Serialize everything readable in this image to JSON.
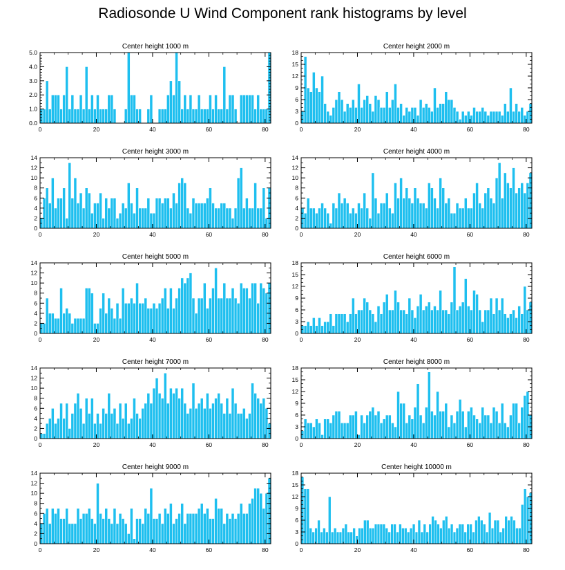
{
  "title": "Radiosonde U Wind Component rank histograms by level",
  "style": {
    "bar_color": "#1ebfef",
    "bar_stroke": "#ffffff",
    "axis_color": "#000000"
  },
  "chart_data": [
    {
      "type": "bar",
      "title": "Center height 1000 m",
      "xlim": [
        0,
        82
      ],
      "xticks": [
        0,
        20,
        40,
        60,
        80
      ],
      "ylim": [
        0,
        5
      ],
      "yticks": [
        0,
        1,
        2,
        3,
        4,
        5
      ],
      "ytick_labels": [
        "0.0",
        "1.0",
        "2.0",
        "3.0",
        "4.0",
        "5.0"
      ],
      "values": [
        1,
        1,
        3,
        1,
        2,
        2,
        2,
        1,
        2,
        4,
        1,
        2,
        1,
        1,
        2,
        1,
        4,
        1,
        2,
        1,
        2,
        1,
        1,
        1,
        2,
        2,
        1,
        0,
        0,
        0,
        1,
        5,
        2,
        2,
        1,
        1,
        0,
        0,
        1,
        2,
        0,
        0,
        1,
        1,
        1,
        2,
        3,
        2,
        5,
        3,
        1,
        2,
        1,
        2,
        1,
        1,
        2,
        1,
        1,
        1,
        2,
        1,
        2,
        1,
        1,
        4,
        1,
        2,
        2,
        1,
        0,
        2,
        2,
        2,
        2,
        2,
        1,
        2,
        1,
        1,
        1,
        5
      ]
    },
    {
      "type": "bar",
      "title": "Center height 2000 m",
      "xlim": [
        0,
        82
      ],
      "xticks": [
        0,
        20,
        40,
        60,
        80
      ],
      "ylim": [
        0,
        18
      ],
      "yticks": [
        0,
        3,
        6,
        9,
        12,
        15,
        18
      ],
      "ytick_labels": [
        "0",
        "3",
        "6",
        "9",
        "12",
        "15",
        "18"
      ],
      "values": [
        3,
        17,
        9,
        8,
        13,
        9,
        8,
        12,
        5,
        3,
        2,
        4,
        6,
        8,
        6,
        3,
        5,
        4,
        6,
        4,
        10,
        4,
        6,
        7,
        5,
        3,
        7,
        6,
        4,
        4,
        8,
        4,
        6,
        10,
        4,
        5,
        2,
        4,
        3,
        4,
        4,
        2,
        6,
        4,
        5,
        4,
        3,
        9,
        4,
        5,
        5,
        8,
        6,
        6,
        4,
        3,
        1,
        3,
        2,
        3,
        2,
        4,
        3,
        3,
        4,
        3,
        2,
        3,
        3,
        3,
        3,
        2,
        5,
        3,
        9,
        3,
        5,
        3,
        4,
        2,
        3,
        5
      ]
    },
    {
      "type": "bar",
      "title": "Center height 3000 m",
      "xlim": [
        0,
        82
      ],
      "xticks": [
        0,
        20,
        40,
        60,
        80
      ],
      "ylim": [
        0,
        14
      ],
      "yticks": [
        0,
        2,
        4,
        6,
        8,
        10,
        12,
        14
      ],
      "ytick_labels": [
        "0",
        "2",
        "4",
        "6",
        "8",
        "10",
        "12",
        "14"
      ],
      "values": [
        2,
        6,
        8,
        5,
        10,
        4,
        6,
        6,
        8,
        2,
        13,
        6,
        10,
        5,
        7,
        4,
        8,
        7,
        3,
        5,
        5,
        7,
        2,
        6,
        4,
        6,
        6,
        2,
        3,
        5,
        4,
        9,
        5,
        3,
        8,
        4,
        4,
        4,
        6,
        3,
        3,
        6,
        6,
        5,
        6,
        6,
        4,
        7,
        5,
        9,
        10,
        9,
        4,
        3,
        6,
        5,
        5,
        5,
        5,
        6,
        8,
        5,
        4,
        4,
        5,
        5,
        4,
        4,
        2,
        4,
        10,
        12,
        4,
        6,
        4,
        4,
        9,
        4,
        4,
        8,
        2,
        8
      ]
    },
    {
      "type": "bar",
      "title": "Center height 4000 m",
      "xlim": [
        0,
        82
      ],
      "xticks": [
        0,
        20,
        40,
        60,
        80
      ],
      "ylim": [
        0,
        14
      ],
      "yticks": [
        0,
        2,
        4,
        6,
        8,
        10,
        12,
        14
      ],
      "ytick_labels": [
        "0",
        "2",
        "4",
        "6",
        "8",
        "10",
        "12",
        "14"
      ],
      "values": [
        4,
        3,
        6,
        4,
        4,
        3,
        4,
        5,
        4,
        3,
        1,
        5,
        4,
        7,
        5,
        6,
        5,
        3,
        4,
        3,
        5,
        4,
        7,
        4,
        2,
        11,
        6,
        3,
        5,
        5,
        7,
        4,
        3,
        9,
        6,
        10,
        6,
        8,
        6,
        5,
        8,
        6,
        5,
        5,
        4,
        9,
        8,
        6,
        4,
        10,
        8,
        5,
        6,
        3,
        3,
        5,
        4,
        4,
        6,
        4,
        4,
        7,
        9,
        5,
        4,
        7,
        8,
        6,
        5,
        10,
        13,
        6,
        11,
        9,
        8,
        12,
        7,
        8,
        9,
        7,
        9,
        11
      ]
    },
    {
      "type": "bar",
      "title": "Center height 5000 m",
      "xlim": [
        0,
        82
      ],
      "xticks": [
        0,
        20,
        40,
        60,
        80
      ],
      "ylim": [
        0,
        14
      ],
      "yticks": [
        0,
        2,
        4,
        6,
        8,
        10,
        12,
        14
      ],
      "ytick_labels": [
        "0",
        "2",
        "4",
        "6",
        "8",
        "10",
        "12",
        "14"
      ],
      "values": [
        2,
        2,
        7,
        4,
        4,
        3,
        3,
        9,
        4,
        5,
        4,
        2,
        3,
        3,
        3,
        3,
        9,
        9,
        8,
        2,
        2,
        5,
        8,
        4,
        7,
        5,
        3,
        6,
        3,
        9,
        6,
        6,
        7,
        6,
        10,
        6,
        6,
        7,
        5,
        5,
        6,
        5,
        6,
        7,
        9,
        5,
        9,
        5,
        7,
        9,
        11,
        10,
        11,
        12,
        7,
        4,
        7,
        7,
        10,
        5,
        7,
        9,
        13,
        7,
        7,
        10,
        7,
        7,
        9,
        7,
        6,
        10,
        9,
        9,
        7,
        10,
        10,
        6,
        10,
        9,
        8,
        10
      ]
    },
    {
      "type": "bar",
      "title": "Center height 6000 m",
      "xlim": [
        0,
        82
      ],
      "xticks": [
        0,
        20,
        40,
        60,
        80
      ],
      "ylim": [
        0,
        18
      ],
      "yticks": [
        0,
        3,
        6,
        9,
        12,
        15,
        18
      ],
      "ytick_labels": [
        "0",
        "3",
        "6",
        "9",
        "12",
        "15",
        "18"
      ],
      "values": [
        2,
        2,
        3,
        2,
        4,
        2,
        4,
        2,
        3,
        3,
        5,
        2,
        5,
        5,
        5,
        5,
        3,
        5,
        9,
        5,
        6,
        6,
        9,
        8,
        6,
        5,
        3,
        7,
        5,
        8,
        10,
        6,
        6,
        11,
        8,
        6,
        6,
        5,
        9,
        6,
        4,
        7,
        10,
        6,
        7,
        8,
        6,
        7,
        6,
        11,
        6,
        6,
        5,
        8,
        17,
        6,
        7,
        8,
        14,
        7,
        6,
        11,
        10,
        6,
        3,
        6,
        6,
        9,
        5,
        9,
        6,
        9,
        5,
        4,
        5,
        6,
        4,
        7,
        5,
        12,
        6,
        8
      ]
    },
    {
      "type": "bar",
      "title": "Center height 7000 m",
      "xlim": [
        0,
        82
      ],
      "xticks": [
        0,
        20,
        40,
        60,
        80
      ],
      "ylim": [
        0,
        14
      ],
      "yticks": [
        0,
        2,
        4,
        6,
        8,
        10,
        12,
        14
      ],
      "ytick_labels": [
        "0",
        "2",
        "4",
        "6",
        "8",
        "10",
        "12",
        "14"
      ],
      "values": [
        1,
        1,
        3,
        4,
        6,
        3,
        4,
        7,
        4,
        7,
        2,
        5,
        7,
        9,
        6,
        3,
        8,
        5,
        8,
        3,
        5,
        3,
        6,
        5,
        9,
        5,
        6,
        3,
        7,
        4,
        7,
        3,
        4,
        8,
        5,
        4,
        6,
        7,
        9,
        7,
        10,
        12,
        9,
        8,
        13,
        7,
        10,
        9,
        10,
        8,
        10,
        7,
        5,
        6,
        11,
        6,
        7,
        8,
        6,
        9,
        6,
        7,
        8,
        9,
        7,
        5,
        8,
        5,
        10,
        7,
        5,
        5,
        6,
        4,
        5,
        11,
        9,
        8,
        7,
        8,
        6,
        3
      ]
    },
    {
      "type": "bar",
      "title": "Center height 8000 m",
      "xlim": [
        0,
        82
      ],
      "xticks": [
        0,
        20,
        40,
        60,
        80
      ],
      "ylim": [
        0,
        18
      ],
      "yticks": [
        0,
        3,
        6,
        9,
        12,
        15,
        18
      ],
      "ytick_labels": [
        "0",
        "3",
        "6",
        "9",
        "12",
        "15",
        "18"
      ],
      "values": [
        2,
        5,
        4,
        4,
        3,
        5,
        4,
        1,
        5,
        5,
        4,
        6,
        7,
        7,
        4,
        4,
        4,
        6,
        6,
        7,
        1,
        6,
        4,
        6,
        7,
        8,
        6,
        7,
        4,
        5,
        6,
        6,
        4,
        3,
        12,
        9,
        9,
        4,
        6,
        5,
        8,
        14,
        6,
        4,
        8,
        17,
        7,
        6,
        12,
        7,
        7,
        9,
        3,
        6,
        4,
        7,
        10,
        7,
        3,
        7,
        8,
        6,
        5,
        4,
        8,
        6,
        6,
        4,
        8,
        7,
        4,
        9,
        4,
        3,
        6,
        9,
        9,
        4,
        8,
        11,
        12,
        6
      ]
    },
    {
      "type": "bar",
      "title": "Center height 9000 m",
      "xlim": [
        0,
        82
      ],
      "xticks": [
        0,
        20,
        40,
        60,
        80
      ],
      "ylim": [
        0,
        14
      ],
      "yticks": [
        0,
        2,
        4,
        6,
        8,
        10,
        12,
        14
      ],
      "ytick_labels": [
        "0",
        "2",
        "4",
        "6",
        "8",
        "10",
        "12",
        "14"
      ],
      "values": [
        4,
        6,
        7,
        4,
        7,
        6,
        7,
        5,
        5,
        7,
        4,
        4,
        4,
        7,
        5,
        6,
        6,
        7,
        5,
        4,
        12,
        6,
        5,
        7,
        5,
        4,
        7,
        4,
        6,
        5,
        4,
        2,
        7,
        1,
        5,
        5,
        4,
        7,
        6,
        11,
        5,
        5,
        6,
        4,
        7,
        6,
        8,
        4,
        5,
        6,
        8,
        4,
        6,
        6,
        6,
        6,
        7,
        8,
        6,
        7,
        5,
        5,
        9,
        7,
        7,
        4,
        6,
        5,
        6,
        5,
        6,
        8,
        6,
        6,
        8,
        9,
        11,
        11,
        10,
        7,
        10,
        13
      ]
    },
    {
      "type": "bar",
      "title": "Center height 10000 m",
      "xlim": [
        0,
        82
      ],
      "xticks": [
        0,
        20,
        40,
        60,
        80
      ],
      "ylim": [
        0,
        18
      ],
      "yticks": [
        0,
        3,
        6,
        9,
        12,
        15,
        18
      ],
      "ytick_labels": [
        "0",
        "3",
        "6",
        "9",
        "12",
        "15",
        "18"
      ],
      "values": [
        17,
        14,
        14,
        4,
        3,
        4,
        6,
        3,
        4,
        3,
        12,
        3,
        4,
        3,
        3,
        4,
        5,
        3,
        3,
        4,
        2,
        4,
        4,
        6,
        6,
        4,
        4,
        5,
        5,
        5,
        5,
        4,
        3,
        5,
        5,
        3,
        5,
        4,
        4,
        3,
        4,
        5,
        3,
        6,
        3,
        5,
        3,
        5,
        7,
        6,
        5,
        4,
        6,
        7,
        4,
        5,
        3,
        4,
        5,
        5,
        3,
        5,
        5,
        3,
        6,
        7,
        6,
        5,
        3,
        8,
        4,
        6,
        6,
        3,
        4,
        7,
        6,
        7,
        6,
        4,
        4,
        10,
        14,
        12,
        13
      ]
    }
  ]
}
